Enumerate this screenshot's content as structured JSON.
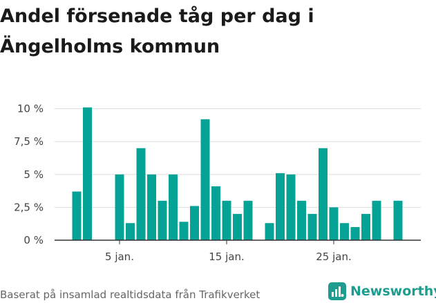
{
  "chart_data": {
    "type": "bar",
    "title": "Andel försenade tåg per dag i Ängelholms kommun",
    "xlabel": "",
    "ylabel": "",
    "x_start_day": 1,
    "values": [
      3.7,
      10.1,
      null,
      null,
      5.0,
      1.3,
      7.0,
      5.0,
      3.0,
      5.0,
      1.4,
      2.6,
      9.2,
      4.1,
      3.0,
      2.0,
      3.0,
      null,
      1.3,
      5.1,
      5.0,
      3.0,
      2.0,
      7.0,
      2.5,
      1.3,
      1.0,
      2.0,
      3.0,
      null,
      3.0
    ],
    "ylim": [
      0,
      10.5
    ],
    "y_ticks": [
      {
        "value": 0,
        "label": "0 %"
      },
      {
        "value": 2.5,
        "label": "2,5 %"
      },
      {
        "value": 5,
        "label": "5 %"
      },
      {
        "value": 7.5,
        "label": "7,5 %"
      },
      {
        "value": 10,
        "label": "10 %"
      }
    ],
    "x_ticks": [
      {
        "day": 5,
        "label": "5 jan."
      },
      {
        "day": 15,
        "label": "15 jan."
      },
      {
        "day": 25,
        "label": "25 jan."
      }
    ],
    "grid": true,
    "bar_color": "#05a396"
  },
  "footer": {
    "source_text": "Baserat på insamlad realtidsdata från Trafikverket",
    "brand_name": "Newsworthy",
    "brand_color": "#1c9d8f"
  }
}
